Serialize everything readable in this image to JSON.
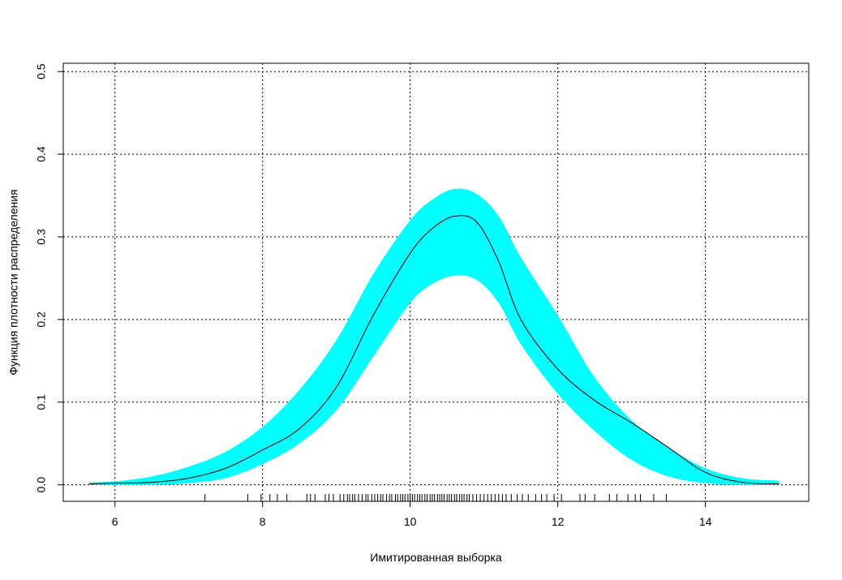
{
  "chart_data": {
    "type": "area",
    "title": "",
    "xlabel": "Имитированная выборка",
    "ylabel": "Функция плотности распределения",
    "xlim": [
      5.3,
      15.4
    ],
    "ylim": [
      -0.02,
      0.51
    ],
    "x_ticks": [
      6,
      8,
      10,
      12,
      14
    ],
    "x_tick_labels": [
      "6",
      "8",
      "10",
      "12",
      "14"
    ],
    "y_ticks": [
      0.0,
      0.1,
      0.2,
      0.3,
      0.4,
      0.5
    ],
    "y_tick_labels": [
      "0.0",
      "0.1",
      "0.2",
      "0.3",
      "0.4",
      "0.5"
    ],
    "grid": true,
    "band_color": "#00ffff",
    "line_color": "#000000",
    "x": [
      5.65,
      6.0,
      6.5,
      7.0,
      7.5,
      8.0,
      8.5,
      9.0,
      9.5,
      10.0,
      10.3,
      10.6,
      10.9,
      11.2,
      11.5,
      12.0,
      12.5,
      13.0,
      13.5,
      14.0,
      14.5,
      15.0
    ],
    "y": [
      0.001,
      0.002,
      0.003,
      0.008,
      0.02,
      0.042,
      0.068,
      0.118,
      0.205,
      0.28,
      0.31,
      0.325,
      0.318,
      0.27,
      0.2,
      0.14,
      0.102,
      0.075,
      0.045,
      0.015,
      0.003,
      0.001
    ],
    "upper": [
      0.003,
      0.004,
      0.01,
      0.022,
      0.04,
      0.07,
      0.115,
      0.175,
      0.255,
      0.32,
      0.345,
      0.358,
      0.352,
      0.325,
      0.275,
      0.205,
      0.13,
      0.078,
      0.045,
      0.02,
      0.008,
      0.005
    ],
    "lower": [
      0.0,
      0.0,
      0.0,
      0.002,
      0.008,
      0.025,
      0.05,
      0.09,
      0.155,
      0.22,
      0.243,
      0.253,
      0.248,
      0.22,
      0.17,
      0.11,
      0.065,
      0.03,
      0.01,
      0.002,
      0.0,
      0.0
    ],
    "rug": [
      7.22,
      7.8,
      7.98,
      8.1,
      8.2,
      8.33,
      8.6,
      8.65,
      8.71,
      8.85,
      8.9,
      8.96,
      9.05,
      9.1,
      9.15,
      9.18,
      9.22,
      9.25,
      9.3,
      9.35,
      9.4,
      9.43,
      9.48,
      9.52,
      9.56,
      9.6,
      9.63,
      9.68,
      9.72,
      9.75,
      9.8,
      9.83,
      9.87,
      9.9,
      9.93,
      9.97,
      10.0,
      10.03,
      10.06,
      10.1,
      10.13,
      10.16,
      10.2,
      10.23,
      10.27,
      10.3,
      10.33,
      10.37,
      10.4,
      10.43,
      10.46,
      10.5,
      10.53,
      10.56,
      10.6,
      10.63,
      10.67,
      10.7,
      10.73,
      10.77,
      10.8,
      10.85,
      10.9,
      10.95,
      11.0,
      11.05,
      11.1,
      11.15,
      11.2,
      11.25,
      11.3,
      11.37,
      11.45,
      11.52,
      11.6,
      11.7,
      11.78,
      11.85,
      11.95,
      12.05,
      12.3,
      12.37,
      12.5,
      12.7,
      12.8,
      12.95,
      13.05,
      13.12,
      13.3,
      13.47
    ]
  }
}
